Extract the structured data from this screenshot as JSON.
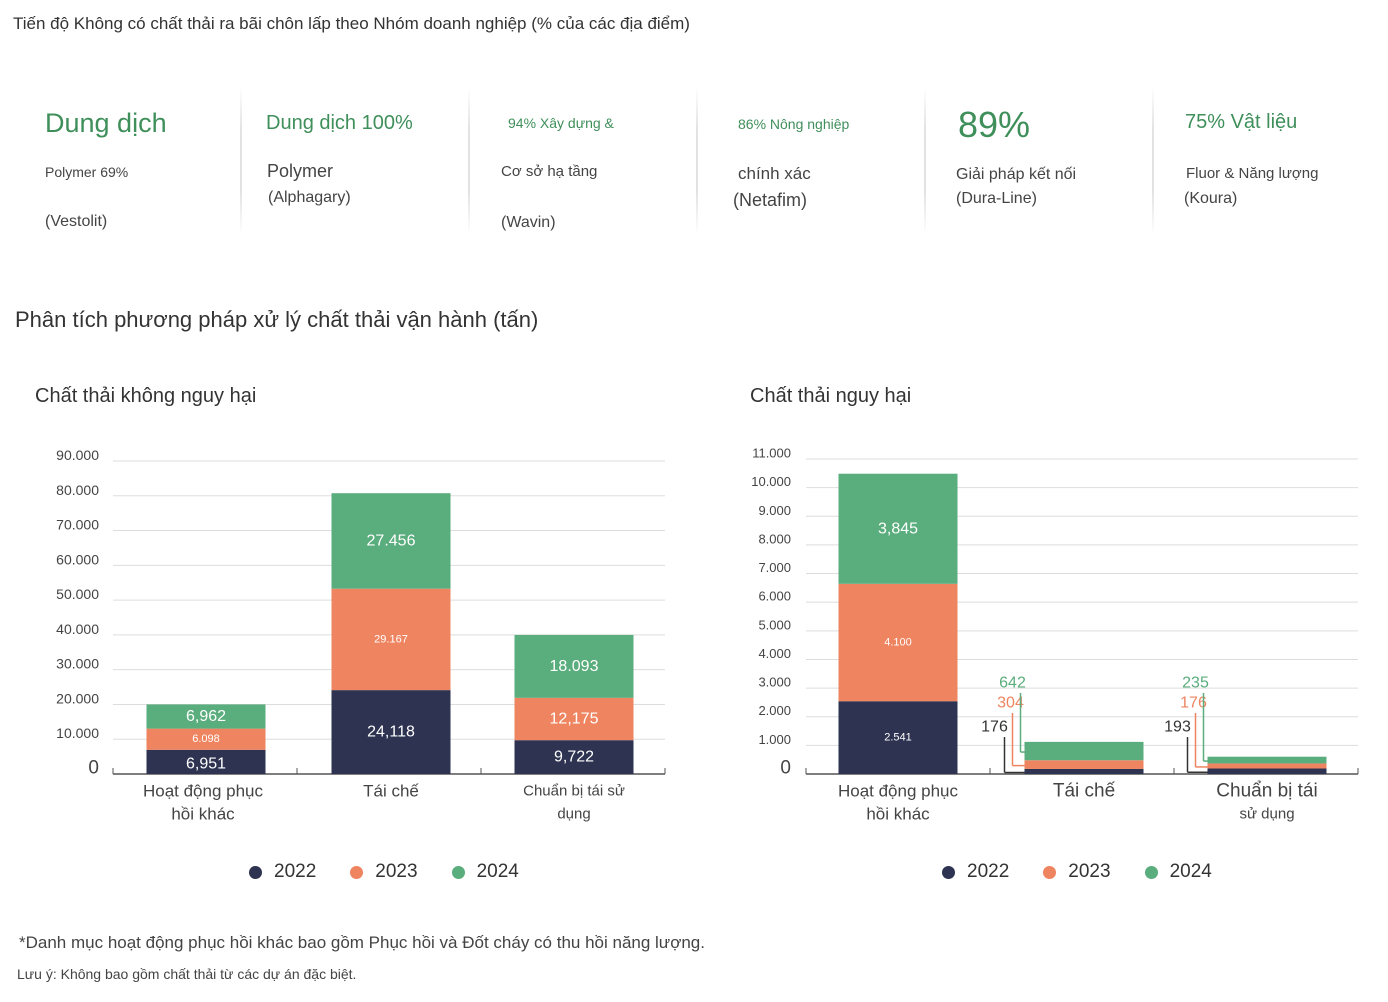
{
  "page_title": "Tiến độ Không có chất thải ra bãi chôn lấp theo Nhóm doanh nghiệp (% của các địa điểm)",
  "kpis": [
    {
      "head": "Dung dịch",
      "lines": [
        "Polymer 69%",
        "(Vestolit)"
      ]
    },
    {
      "head": "Dung dịch 100%",
      "lines": [
        "Polymer",
        "(Alphagary)"
      ]
    },
    {
      "head": "94% Xây dựng &",
      "lines": [
        "Cơ sở hạ tầng",
        "(Wavin)"
      ]
    },
    {
      "head": "86% Nông nghiệp",
      "lines": [
        "chính xác",
        "(Netafim)"
      ]
    },
    {
      "head": "89%",
      "lines": [
        "Giải pháp kết nối",
        "(Dura-Line)"
      ]
    },
    {
      "head": "75% Vật liệu",
      "lines": [
        "Fluor & Năng lượng",
        "(Koura)"
      ]
    }
  ],
  "section_title": "Phân tích phương pháp xử lý chất thải vận hành (tấn)",
  "colors": {
    "2022": "#2d3350",
    "2023": "#ee8460",
    "2024": "#5aad7c"
  },
  "legend": [
    "2022",
    "2023",
    "2024"
  ],
  "chart_data": [
    {
      "type": "bar",
      "stacked": true,
      "title": "Chất thải không nguy hại",
      "categories": [
        "Hoạt động phục hồi khác",
        "Tái chế",
        "Chuẩn bị tái sử dụng"
      ],
      "category_lines": [
        [
          "Hoạt động phục",
          "hồi khác"
        ],
        [
          "Tái chế"
        ],
        [
          "Chuẩn bị tái sử",
          "dụng"
        ]
      ],
      "yticks": [
        "0",
        "10.000",
        "20.000",
        "30.000",
        "40.000",
        "50.000",
        "60.000",
        "70.000",
        "80.000",
        "90.000"
      ],
      "ylim": [
        0,
        90000
      ],
      "series": [
        {
          "name": "2022",
          "values": [
            6951,
            24118,
            9722
          ],
          "labels": [
            "6,951",
            "24,118",
            "9,722"
          ]
        },
        {
          "name": "2023",
          "values": [
            6098,
            29167,
            12175
          ],
          "labels": [
            "6.098",
            "29.167",
            "12,175"
          ]
        },
        {
          "name": "2024",
          "values": [
            6962,
            27456,
            18093
          ],
          "labels": [
            "6,962",
            "27.456",
            "18.093"
          ]
        }
      ],
      "legend": "bottom"
    },
    {
      "type": "bar",
      "stacked": true,
      "title": "Chất thải nguy hại",
      "categories": [
        "Hoạt động phục hồi khác",
        "Tái chế",
        "Chuẩn bị tái sử dụng"
      ],
      "category_lines": [
        [
          "Hoạt động phục",
          "hồi khác"
        ],
        [
          "Tái chế"
        ],
        [
          "Chuẩn bị tái",
          "sử dụng"
        ]
      ],
      "yticks": [
        "0",
        "1.000",
        "2.000",
        "3.000",
        "4.000",
        "5.000",
        "6.000",
        "7.000",
        "8.000",
        "9.000",
        "10.000",
        "11.000"
      ],
      "ylim": [
        0,
        11000
      ],
      "series": [
        {
          "name": "2022",
          "values": [
            2541,
            176,
            193
          ],
          "labels": [
            "2.541",
            "176",
            "193"
          ]
        },
        {
          "name": "2023",
          "values": [
            4100,
            304,
            176
          ],
          "labels": [
            "4.100",
            "304",
            "176"
          ]
        },
        {
          "name": "2024",
          "values": [
            3845,
            642,
            235
          ],
          "labels": [
            "3,845",
            "642",
            "235"
          ]
        }
      ],
      "legend": "bottom"
    }
  ],
  "footnote": "*Danh mục hoạt động phục hồi khác bao gồm Phục hồi và Đốt cháy có thu hồi năng lượng.",
  "note": "Lưu ý: Không bao gồm chất thải từ các dự án đặc biệt."
}
